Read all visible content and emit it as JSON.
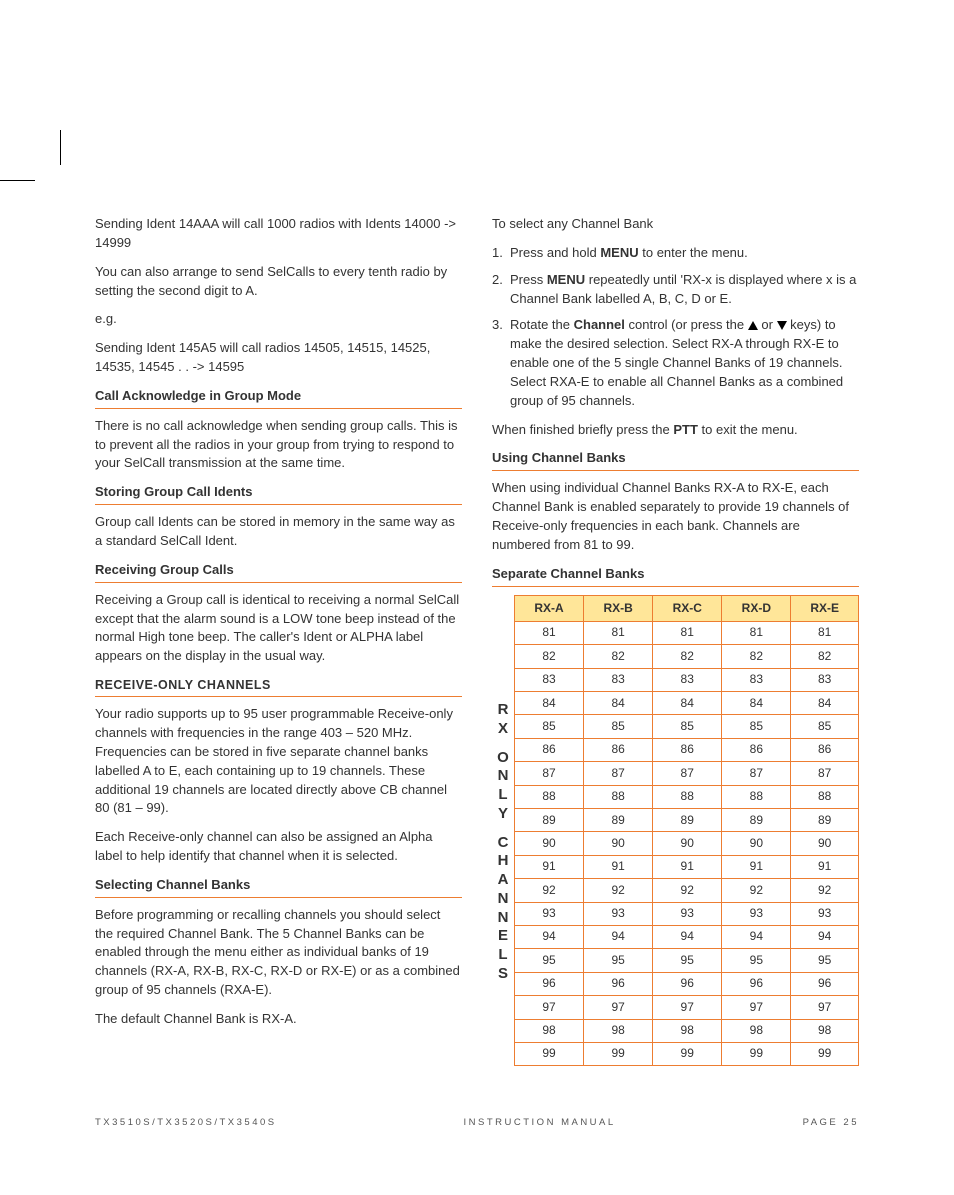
{
  "left": {
    "p1": "Sending Ident 14AAA will call 1000 radios with Idents 14000 -> 14999",
    "p2": "You can also arrange to send SelCalls to every tenth radio by setting the second digit to A.",
    "p3": "e.g.",
    "p4": "Sending Ident 145A5 will call radios 14505, 14515, 14525, 14535, 14545 . . ->  14595",
    "h1": "Call Acknowledge in Group Mode",
    "p5": "There is no call acknowledge when sending group calls. This is to prevent all the radios in your group from trying to respond to your SelCall transmission at the same time.",
    "h2": "Storing Group Call Idents",
    "p6": "Group call Idents can be stored in memory in the same way as a standard SelCall Ident.",
    "h3": "Receiving Group Calls",
    "p7": "Receiving a Group call is identical to receiving a normal SelCall except that the alarm sound is a LOW tone beep instead of the normal High tone beep. The caller's Ident or ALPHA label appears on the display in the usual way.",
    "h4": "RECEIVE-ONLY CHANNELS",
    "p8": "Your radio supports up to 95 user programmable Receive-only channels with frequencies in the range 403 – 520 MHz. Frequencies can be stored in five separate channel banks labelled A to E, each containing up to 19 channels. These additional 19 channels are located directly above CB channel 80 (81 – 99).",
    "p9": "Each Receive-only channel can also be assigned an Alpha label to help identify that channel when it is selected.",
    "h5": "Selecting Channel Banks",
    "p10": "Before programming or recalling channels you should select the required Channel Bank. The 5 Channel Banks can be enabled through the menu either as individual banks of 19 channels (RX-A, RX-B, RX-C, RX-D or RX-E) or as a combined group of 95 channels (RXA-E).",
    "p11": "The default Channel Bank is RX-A."
  },
  "right": {
    "p0": "To select any Channel Bank",
    "li1a": "Press and hold ",
    "li1b": "MENU",
    "li1c": " to enter the menu.",
    "li2a": "Press ",
    "li2b": "MENU",
    "li2c": " repeatedly until 'RX-x is displayed where x is a Channel Bank labelled A, B, C, D or E.",
    "li3a": "Rotate the ",
    "li3b": "Channel",
    "li3c": " control (or press the ",
    "li3d": " or ",
    "li3e": " keys) to make the desired selection. Select RX-A through RX-E to enable one of the 5 single Channel Banks of 19 channels. Select RXA-E to enable all Channel Banks as a combined group of 95 channels.",
    "p1a": "When finished briefly press the ",
    "p1b": "PTT",
    "p1c": " to exit the menu.",
    "h1": "Using Channel Banks",
    "p2": "When using individual Channel Banks RX-A to RX-E, each Channel Bank is enabled separately to provide 19 channels of Receive-only frequencies in each bank. Channels are numbered from 81 to 99.",
    "h2": "Separate Channel Banks",
    "table": {
      "side_label": "RX ONLY CHANNELS",
      "headers": [
        "RX-A",
        "RX-B",
        "RX-C",
        "RX-D",
        "RX-E"
      ],
      "row_start": 81,
      "row_end": 99,
      "header_bg": "#ffe699",
      "border_color": "#ed7d31"
    }
  },
  "footer": {
    "left": "TX3510S/TX3520S/TX3540S",
    "center": "INSTRUCTION MANUAL",
    "right": "PAGE 25"
  }
}
